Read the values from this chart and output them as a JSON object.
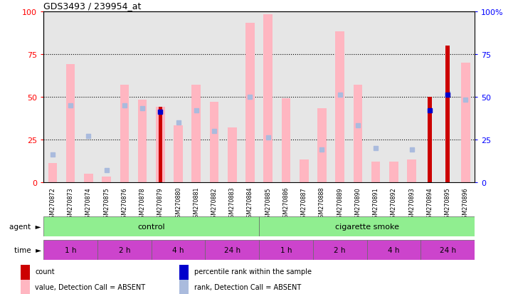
{
  "title": "GDS3493 / 239954_at",
  "samples": [
    "GSM270872",
    "GSM270873",
    "GSM270874",
    "GSM270875",
    "GSM270876",
    "GSM270878",
    "GSM270879",
    "GSM270880",
    "GSM270881",
    "GSM270882",
    "GSM270883",
    "GSM270884",
    "GSM270885",
    "GSM270886",
    "GSM270887",
    "GSM270888",
    "GSM270889",
    "GSM270890",
    "GSM270891",
    "GSM270892",
    "GSM270893",
    "GSM270894",
    "GSM270895",
    "GSM270896"
  ],
  "pink_bars": [
    11,
    69,
    5,
    3,
    57,
    48,
    44,
    33,
    57,
    47,
    32,
    93,
    98,
    49,
    13,
    43,
    88,
    57,
    12,
    12,
    13,
    0,
    0,
    70
  ],
  "blue_squares_y": [
    16,
    45,
    27,
    7,
    45,
    43,
    41,
    35,
    42,
    30,
    null,
    50,
    26,
    null,
    null,
    19,
    51,
    33,
    20,
    null,
    19,
    null,
    52,
    48
  ],
  "dark_red_bars": [
    null,
    null,
    null,
    null,
    null,
    null,
    44,
    null,
    null,
    null,
    null,
    null,
    null,
    null,
    null,
    null,
    null,
    null,
    null,
    null,
    null,
    50,
    80,
    null
  ],
  "dark_blue_squares_y": [
    null,
    null,
    null,
    null,
    null,
    null,
    41,
    null,
    null,
    null,
    null,
    null,
    null,
    null,
    null,
    null,
    null,
    null,
    null,
    null,
    null,
    42,
    51,
    null
  ],
  "pink_color": "#FFB6C1",
  "light_blue_color": "#AABBDD",
  "dark_red_color": "#CC0000",
  "dark_blue_color": "#0000CC",
  "green_color": "#90EE90",
  "purple_color": "#CC44CC",
  "col_bg_color": "#C8C8C8",
  "yticks": [
    0,
    25,
    50,
    75,
    100
  ],
  "ylim": [
    0,
    100
  ],
  "time_groups": [
    {
      "label": "1 h",
      "start": 0,
      "end": 2
    },
    {
      "label": "2 h",
      "start": 3,
      "end": 5
    },
    {
      "label": "4 h",
      "start": 6,
      "end": 8
    },
    {
      "label": "24 h",
      "start": 9,
      "end": 11
    },
    {
      "label": "1 h",
      "start": 12,
      "end": 14
    },
    {
      "label": "2 h",
      "start": 15,
      "end": 17
    },
    {
      "label": "4 h",
      "start": 18,
      "end": 20
    },
    {
      "label": "24 h",
      "start": 21,
      "end": 23
    }
  ],
  "agent_groups": [
    {
      "label": "control",
      "start": 0,
      "end": 11
    },
    {
      "label": "cigarette smoke",
      "start": 12,
      "end": 23
    }
  ],
  "legend_items": [
    {
      "label": "count",
      "color": "#CC0000"
    },
    {
      "label": "percentile rank within the sample",
      "color": "#0000CC"
    },
    {
      "label": "value, Detection Call = ABSENT",
      "color": "#FFB6C1"
    },
    {
      "label": "rank, Detection Call = ABSENT",
      "color": "#AABBDD"
    }
  ]
}
